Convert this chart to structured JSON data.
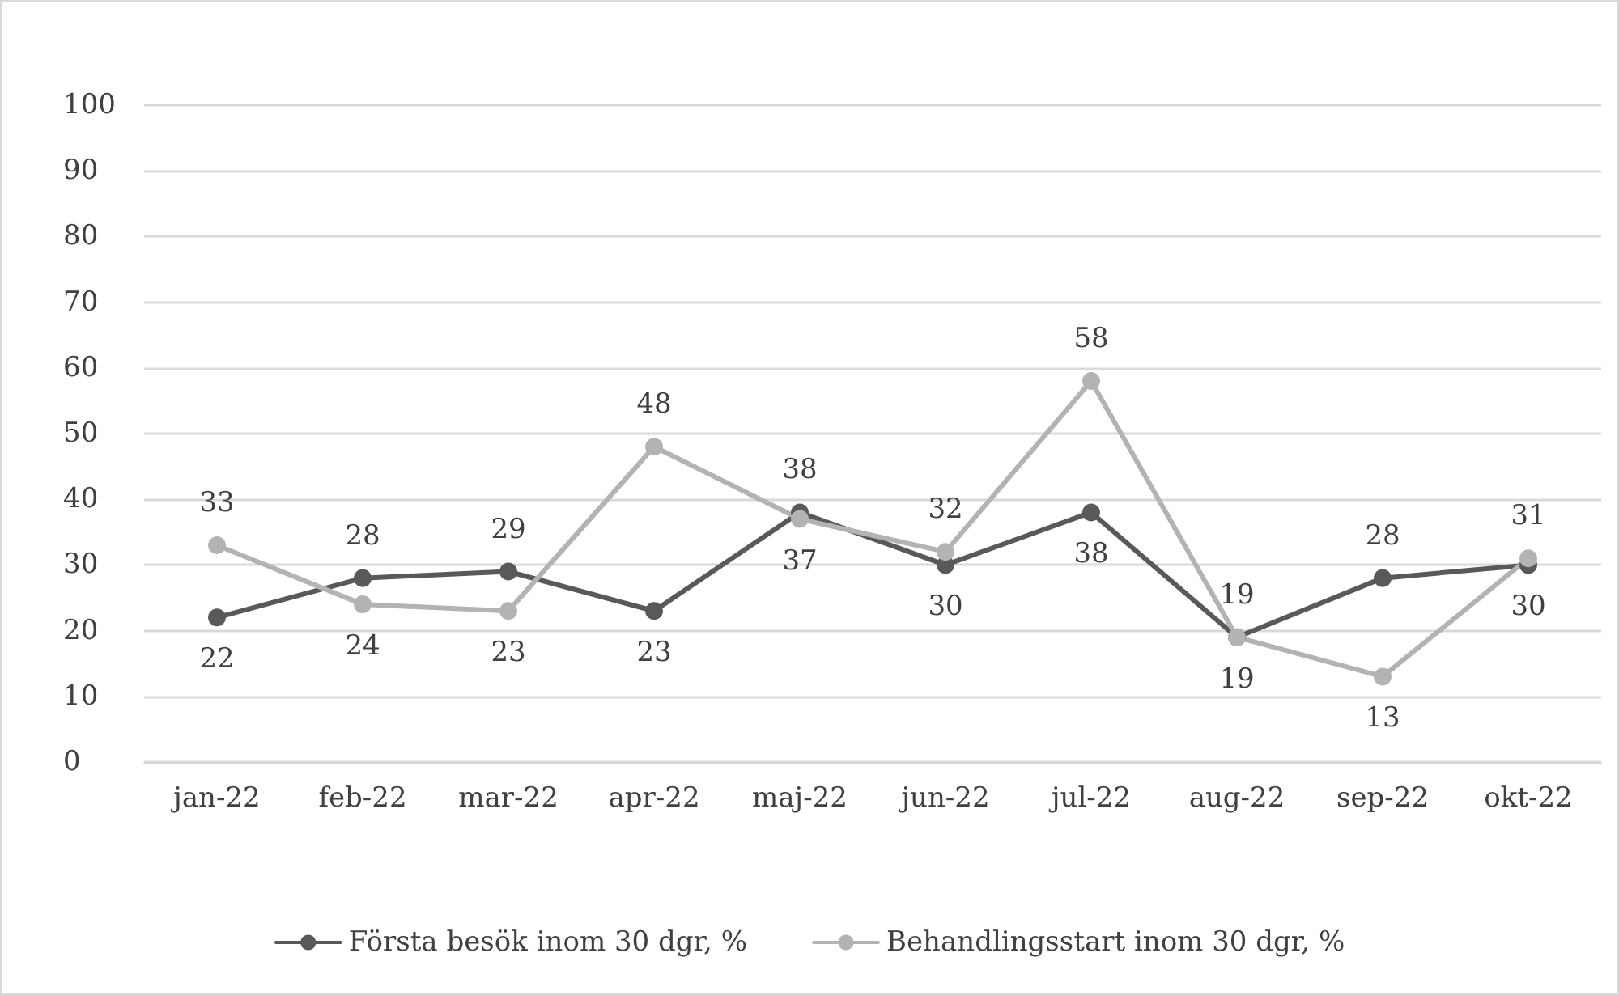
{
  "chart_data": {
    "type": "line",
    "categories": [
      "jan-22",
      "feb-22",
      "mar-22",
      "apr-22",
      "maj-22",
      "jun-22",
      "jul-22",
      "aug-22",
      "sep-22",
      "okt-22"
    ],
    "series": [
      {
        "name": "Första besök inom 30 dgr, %",
        "color": "#595959",
        "values": [
          22,
          28,
          29,
          23,
          38,
          30,
          38,
          19,
          28,
          30
        ]
      },
      {
        "name": "Behandlingsstart inom 30 dgr, %",
        "color": "#b3b3b3",
        "values": [
          33,
          24,
          23,
          48,
          37,
          32,
          58,
          19,
          13,
          31
        ]
      }
    ],
    "ylim": [
      0,
      100
    ],
    "yticks": [
      0,
      10,
      20,
      30,
      40,
      50,
      60,
      70,
      80,
      90,
      100
    ],
    "grid": "y",
    "legend": "bottom",
    "marker": "circle",
    "line_style": "solid",
    "data_labels": true
  }
}
